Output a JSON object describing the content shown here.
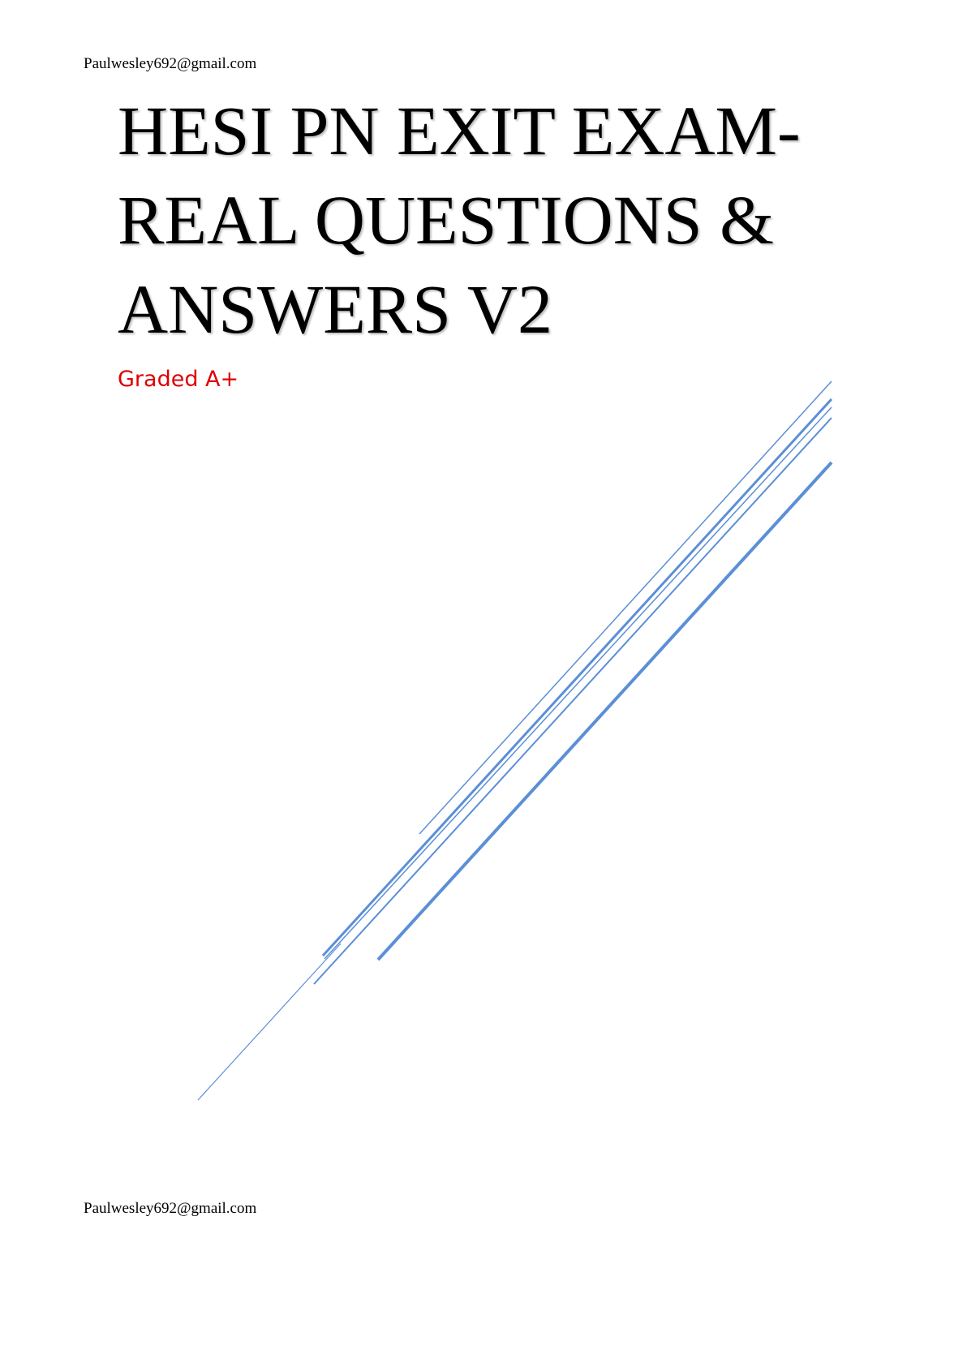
{
  "header": {
    "email": "Paulwesley692@gmail.com"
  },
  "title_lines": [
    "HESI PN EXIT EXAM-",
    "REAL QUESTIONS &",
    "ANSWERS V2"
  ],
  "subtitle": "Graded A+",
  "footer": {
    "email": "Paulwesley692@gmail.com"
  }
}
